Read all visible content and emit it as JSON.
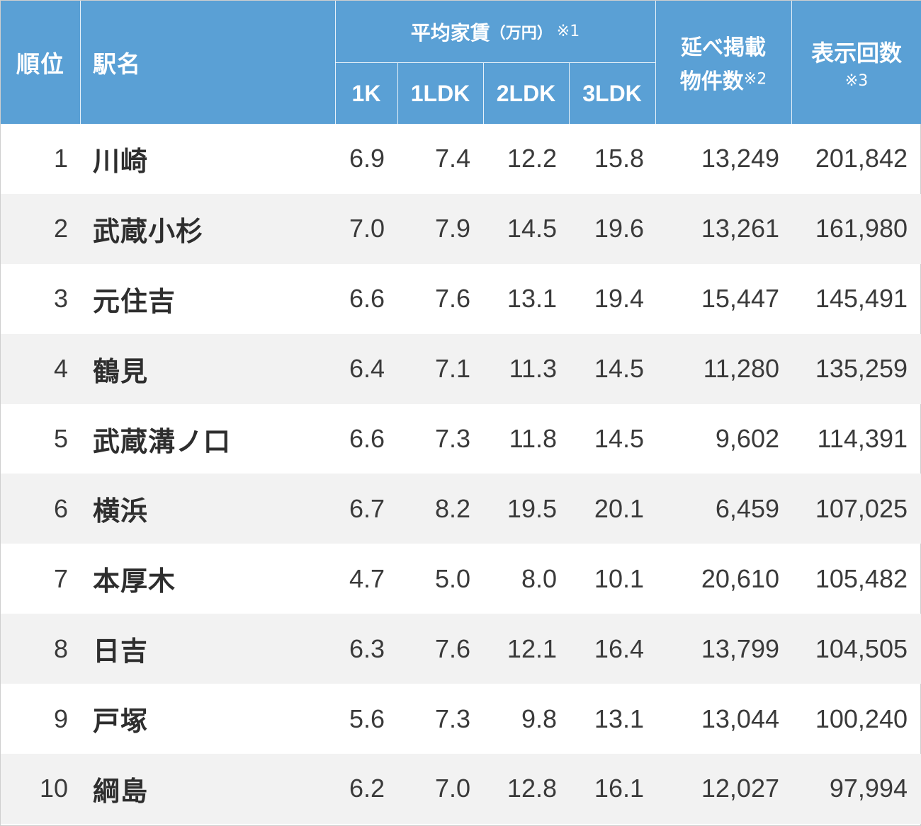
{
  "header": {
    "rank": "順位",
    "station": "駅名",
    "avg_rent_title": "平均家賃",
    "avg_rent_unit": "（万円）",
    "avg_rent_note": "※1",
    "listings_line1": "延べ掲載",
    "listings_line2": "物件数",
    "listings_note": "※2",
    "views_label": "表示回数",
    "views_note": "※3",
    "sub_1k": "1K",
    "sub_1ldk": "1LDK",
    "sub_2ldk": "2LDK",
    "sub_3ldk": "3LDK"
  },
  "rows": [
    {
      "rank": "1",
      "station": "川崎",
      "k1": "6.9",
      "ldk1": "7.4",
      "ldk2": "12.2",
      "ldk3": "15.8",
      "listings": "13,249",
      "views": "201,842"
    },
    {
      "rank": "2",
      "station": "武蔵小杉",
      "k1": "7.0",
      "ldk1": "7.9",
      "ldk2": "14.5",
      "ldk3": "19.6",
      "listings": "13,261",
      "views": "161,980"
    },
    {
      "rank": "3",
      "station": "元住吉",
      "k1": "6.6",
      "ldk1": "7.6",
      "ldk2": "13.1",
      "ldk3": "19.4",
      "listings": "15,447",
      "views": "145,491"
    },
    {
      "rank": "4",
      "station": "鶴見",
      "k1": "6.4",
      "ldk1": "7.1",
      "ldk2": "11.3",
      "ldk3": "14.5",
      "listings": "11,280",
      "views": "135,259"
    },
    {
      "rank": "5",
      "station": "武蔵溝ノ口",
      "k1": "6.6",
      "ldk1": "7.3",
      "ldk2": "11.8",
      "ldk3": "14.5",
      "listings": "9,602",
      "views": "114,391"
    },
    {
      "rank": "6",
      "station": "横浜",
      "k1": "6.7",
      "ldk1": "8.2",
      "ldk2": "19.5",
      "ldk3": "20.1",
      "listings": "6,459",
      "views": "107,025"
    },
    {
      "rank": "7",
      "station": "本厚木",
      "k1": "4.7",
      "ldk1": "5.0",
      "ldk2": "8.0",
      "ldk3": "10.1",
      "listings": "20,610",
      "views": "105,482"
    },
    {
      "rank": "8",
      "station": "日吉",
      "k1": "6.3",
      "ldk1": "7.6",
      "ldk2": "12.1",
      "ldk3": "16.4",
      "listings": "13,799",
      "views": "104,505"
    },
    {
      "rank": "9",
      "station": "戸塚",
      "k1": "5.6",
      "ldk1": "7.3",
      "ldk2": "9.8",
      "ldk3": "13.1",
      "listings": "13,044",
      "views": "100,240"
    },
    {
      "rank": "10",
      "station": "綱島",
      "k1": "6.2",
      "ldk1": "7.0",
      "ldk2": "12.8",
      "ldk3": "16.1",
      "listings": "12,027",
      "views": "97,994"
    }
  ],
  "colors": {
    "header_bg": "#5aa0d5",
    "header_text": "#ffffff",
    "row_alt_bg": "#f2f2f2",
    "row_bg": "#ffffff",
    "body_text": "#3a3a3a"
  }
}
